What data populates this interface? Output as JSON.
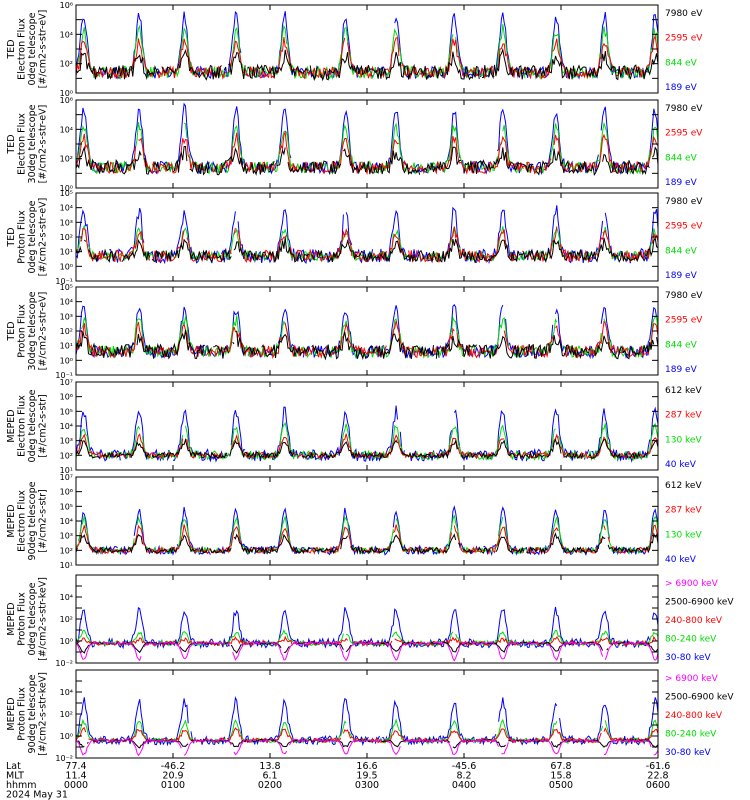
{
  "chart_data": {
    "type": "line",
    "x_axis": {
      "rows": [
        {
          "label": "Lat",
          "values": [
            "77.4",
            "-46.2",
            "13.8",
            "16.6",
            "-45.6",
            "67.8",
            "-61.6"
          ]
        },
        {
          "label": "MLT",
          "values": [
            "11.4",
            "20.9",
            "6.1",
            "19.5",
            "8.2",
            "15.8",
            "22.8"
          ]
        },
        {
          "label": "hhmm",
          "values": [
            "0000",
            "0100",
            "0200",
            "0300",
            "0400",
            "0500",
            "0600"
          ]
        }
      ],
      "date": "2024 May 31",
      "range_hours": [
        0,
        6
      ]
    },
    "panels": [
      {
        "title_lines": [
          "TED",
          "Electron Flux",
          "0deg telescope",
          "[#/cm2-s-str-eV]"
        ],
        "scale": "log",
        "ylim_exp": [
          0,
          6
        ],
        "tick_labels": [
          "10⁰",
          "10²",
          "10⁴",
          "10⁶"
        ],
        "tick_exps": [
          0,
          2,
          4,
          6
        ],
        "baseline_exp": 1.4,
        "series": [
          {
            "name": "7980 eV",
            "color": "#000000",
            "peak_exp": 2.5,
            "noise": 0.5
          },
          {
            "name": "2595 eV",
            "color": "#ff0000",
            "peak_exp": 3.6,
            "noise": 0.4
          },
          {
            "name": "844 eV",
            "color": "#00dd00",
            "peak_exp": 4.3,
            "noise": 0.4
          },
          {
            "name": "189 eV",
            "color": "#0000ff",
            "peak_exp": 5.3,
            "noise": 0.4
          }
        ]
      },
      {
        "title_lines": [
          "TED",
          "Electron Flux",
          "30deg telescope",
          "[#/cm2-s-str-eV]"
        ],
        "scale": "log",
        "ylim_exp": [
          0,
          6
        ],
        "tick_labels": [
          "10⁰",
          "10²",
          "10⁴",
          "10⁶"
        ],
        "tick_exps": [
          0,
          2,
          4,
          6
        ],
        "baseline_exp": 1.4,
        "series": [
          {
            "name": "7980 eV",
            "color": "#000000",
            "peak_exp": 2.4,
            "noise": 0.5
          },
          {
            "name": "2595 eV",
            "color": "#ff0000",
            "peak_exp": 3.5,
            "noise": 0.4
          },
          {
            "name": "844 eV",
            "color": "#00dd00",
            "peak_exp": 4.2,
            "noise": 0.4
          },
          {
            "name": "189 eV",
            "color": "#0000ff",
            "peak_exp": 5.4,
            "noise": 0.4
          }
        ]
      },
      {
        "title_lines": [
          "TED",
          "Proton Flux",
          "0deg telescope",
          "[#/cm2-s-str-eV]"
        ],
        "scale": "log",
        "ylim_exp": [
          -1,
          5
        ],
        "tick_labels": [
          "10⁻¹",
          "10⁰",
          "10¹",
          "10²",
          "10³",
          "10⁴",
          "10⁵"
        ],
        "tick_exps": [
          -1,
          0,
          1,
          2,
          3,
          4,
          5
        ],
        "baseline_exp": 0.7,
        "series": [
          {
            "name": "7980 eV",
            "color": "#000000",
            "peak_exp": 1.6,
            "noise": 0.4
          },
          {
            "name": "2595 eV",
            "color": "#ff0000",
            "peak_exp": 2.4,
            "noise": 0.4
          },
          {
            "name": "844 eV",
            "color": "#00dd00",
            "peak_exp": 2.5,
            "noise": 0.3
          },
          {
            "name": "189 eV",
            "color": "#0000ff",
            "peak_exp": 3.8,
            "noise": 0.5
          }
        ]
      },
      {
        "title_lines": [
          "TED",
          "Proton Flux",
          "30deg telescope",
          "[#/cm2-s-str-eV]"
        ],
        "scale": "log",
        "ylim_exp": [
          -1,
          5
        ],
        "tick_labels": [
          "10⁻¹",
          "10⁰",
          "10¹",
          "10²",
          "10³",
          "10⁴",
          "10⁵"
        ],
        "tick_exps": [
          -1,
          0,
          1,
          2,
          3,
          4,
          5
        ],
        "baseline_exp": 0.6,
        "series": [
          {
            "name": "7980 eV",
            "color": "#000000",
            "peak_exp": 1.6,
            "noise": 0.5
          },
          {
            "name": "2595 eV",
            "color": "#ff0000",
            "peak_exp": 2.3,
            "noise": 0.4
          },
          {
            "name": "844 eV",
            "color": "#00dd00",
            "peak_exp": 2.8,
            "noise": 0.4
          },
          {
            "name": "189 eV",
            "color": "#0000ff",
            "peak_exp": 3.6,
            "noise": 0.4
          }
        ]
      },
      {
        "title_lines": [
          "MEPED",
          "Electron Flux",
          "0deg telescope",
          "[#/cm2-s-str]"
        ],
        "scale": "log",
        "ylim_exp": [
          1,
          7
        ],
        "tick_labels": [
          "10¹",
          "10²",
          "10³",
          "10⁴",
          "10⁵",
          "10⁶",
          "10⁷"
        ],
        "tick_exps": [
          1,
          2,
          3,
          4,
          5,
          6,
          7
        ],
        "baseline_exp": 2.0,
        "series": [
          {
            "name": "612 keV",
            "color": "#000000",
            "peak_exp": 2.9,
            "noise": 0.2
          },
          {
            "name": "287 keV",
            "color": "#ff0000",
            "peak_exp": 3.3,
            "noise": 0.2
          },
          {
            "name": "130 keV",
            "color": "#00dd00",
            "peak_exp": 4.0,
            "noise": 0.3
          },
          {
            "name": "40 keV",
            "color": "#0000ff",
            "peak_exp": 5.0,
            "noise": 0.4
          }
        ]
      },
      {
        "title_lines": [
          "MEPED",
          "Electron Flux",
          "90deg telescope",
          "[#/cm2-s-str]"
        ],
        "scale": "log",
        "ylim_exp": [
          1,
          7
        ],
        "tick_labels": [
          "10¹",
          "10²",
          "10³",
          "10⁴",
          "10⁵",
          "10⁶",
          "10⁷"
        ],
        "tick_exps": [
          1,
          2,
          3,
          4,
          5,
          6,
          7
        ],
        "baseline_exp": 2.0,
        "series": [
          {
            "name": "612 keV",
            "color": "#000000",
            "peak_exp": 3.0,
            "noise": 0.2
          },
          {
            "name": "287 keV",
            "color": "#ff0000",
            "peak_exp": 3.6,
            "noise": 0.2
          },
          {
            "name": "130 keV",
            "color": "#00dd00",
            "peak_exp": 4.2,
            "noise": 0.2
          },
          {
            "name": "40 keV",
            "color": "#0000ff",
            "peak_exp": 4.7,
            "noise": 0.3
          }
        ]
      },
      {
        "title_lines": [
          "MEPED",
          "Proton Flux",
          "0deg telescope",
          "[#/cm2-s-str-keV]"
        ],
        "scale": "log",
        "ylim_exp": [
          -2,
          6
        ],
        "tick_labels": [
          "10⁻²",
          "10⁰",
          "10²",
          "10⁴"
        ],
        "tick_exps": [
          -2,
          0,
          2,
          4
        ],
        "baseline_exp": -0.2,
        "series": [
          {
            "name": "> 6900 keV",
            "color": "#ff00ff",
            "peak_exp": -1.7,
            "noise": 0.1
          },
          {
            "name": "2500-6900 keV",
            "color": "#000000",
            "peak_exp": -1.0,
            "noise": 0.1
          },
          {
            "name": "240-800 keV",
            "color": "#ff0000",
            "peak_exp": 0.2,
            "noise": 0.2
          },
          {
            "name": "80-240 keV",
            "color": "#00dd00",
            "peak_exp": 0.8,
            "noise": 0.2
          },
          {
            "name": "30-80 keV",
            "color": "#0000ff",
            "peak_exp": 2.8,
            "noise": 0.4
          }
        ]
      },
      {
        "title_lines": [
          "MEPED",
          "Proton Flux",
          "90deg telescope",
          "[#/cm2-s-str-keV]"
        ],
        "scale": "log",
        "ylim_exp": [
          -2,
          6
        ],
        "tick_labels": [
          "10⁻²",
          "10⁰",
          "10²",
          "10⁴"
        ],
        "tick_exps": [
          -2,
          0,
          2,
          4
        ],
        "baseline_exp": -0.4,
        "series": [
          {
            "name": "> 6900 keV",
            "color": "#ff00ff",
            "peak_exp": -1.7,
            "noise": 0.1
          },
          {
            "name": "2500-6900 keV",
            "color": "#000000",
            "peak_exp": -1.0,
            "noise": 0.1
          },
          {
            "name": "240-800 keV",
            "color": "#ff0000",
            "peak_exp": 0.6,
            "noise": 0.2
          },
          {
            "name": "80-240 keV",
            "color": "#00dd00",
            "peak_exp": 1.3,
            "noise": 0.2
          },
          {
            "name": "30-80 keV",
            "color": "#0000ff",
            "peak_exp": 3.2,
            "noise": 0.4
          }
        ]
      }
    ],
    "pass_centers_hours": [
      0.08,
      0.65,
      1.12,
      1.65,
      2.15,
      2.78,
      3.3,
      3.9,
      4.4,
      4.95,
      5.45,
      5.97
    ],
    "grid": false,
    "legend": "right"
  }
}
